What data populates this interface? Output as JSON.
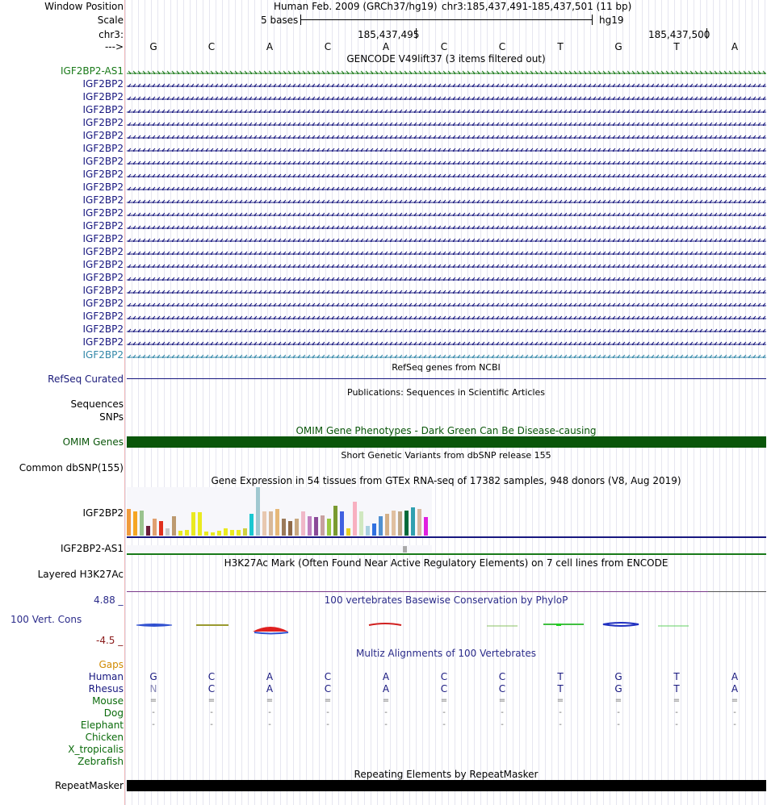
{
  "ruler": {
    "window_position_label": "Window Position",
    "scale_label": "Scale",
    "chrom_label": "chr3:",
    "strand_label": "--->",
    "assembly_text": "Human Feb. 2009 (GRCh37/hg19)",
    "position_text": "chr3:185,437,491-185,437,501 (11 bp)",
    "scale_text": "5 bases",
    "db_text": "hg19",
    "coord1": "185,437,495",
    "coord2": "185,437,500"
  },
  "bases": [
    "G",
    "C",
    "A",
    "C",
    "A",
    "C",
    "C",
    "T",
    "G",
    "T",
    "A"
  ],
  "gencode": {
    "title": "GENCODE V49lift37 (3 items filtered out)",
    "genes": [
      "IGF2BP2-AS1",
      "IGF2BP2",
      "IGF2BP2",
      "IGF2BP2",
      "IGF2BP2",
      "IGF2BP2",
      "IGF2BP2",
      "IGF2BP2",
      "IGF2BP2",
      "IGF2BP2",
      "IGF2BP2",
      "IGF2BP2",
      "IGF2BP2",
      "IGF2BP2",
      "IGF2BP2",
      "IGF2BP2",
      "IGF2BP2",
      "IGF2BP2",
      "IGF2BP2",
      "IGF2BP2",
      "IGF2BP2",
      "IGF2BP2",
      "IGF2BP2"
    ],
    "colors": {
      "as1": "#197a19",
      "main": "#17177f",
      "last": "#3287a8"
    }
  },
  "refseq": {
    "title": "RefSeq genes from NCBI",
    "label": "RefSeq Curated"
  },
  "publications": {
    "title": "Publications: Sequences in Scientific Articles",
    "label1": "Sequences",
    "label2": "SNPs"
  },
  "omim": {
    "title": "OMIM Gene Phenotypes - Dark Green Can Be Disease-causing",
    "label": "OMIM Genes",
    "color": "#0a560a"
  },
  "dbsnp": {
    "title": "Short Genetic Variants from dbSNP release 155",
    "label": "Common dbSNP(155)"
  },
  "gtex": {
    "title": "Gene Expression in 54 tissues from GTEx RNA-seq of 17382 samples, 948 donors (V8, Aug 2019)",
    "label1": "IGF2BP2",
    "label2": "IGF2BP2-AS1",
    "bar_values": [
      0.55,
      0.5,
      0.52,
      0.2,
      0.35,
      0.3,
      0.15,
      0.4,
      0.1,
      0.12,
      0.48,
      0.48,
      0.08,
      0.06,
      0.1,
      0.15,
      0.12,
      0.12,
      0.15,
      0.45,
      1.0,
      0.5,
      0.5,
      0.55,
      0.35,
      0.3,
      0.35,
      0.5,
      0.4,
      0.38,
      0.42,
      0.35,
      0.62,
      0.5,
      0.15,
      0.7,
      0.5,
      0.2,
      0.25,
      0.4,
      0.45,
      0.52,
      0.5,
      0.52,
      0.58,
      0.55,
      0.38
    ],
    "bar_colors": [
      "#f09a3c",
      "#f5a623",
      "#9ac38e",
      "#6b1f3a",
      "#e0a070",
      "#e0301e",
      "#c8c8c8",
      "#bd9a70",
      "#eaea20",
      "#eaea20",
      "#eaea20",
      "#eaea20",
      "#eaea20",
      "#eaea20",
      "#eaea20",
      "#eaea20",
      "#eaea20",
      "#eaea20",
      "#d0d040",
      "#1ac8d0",
      "#a0c8d0",
      "#e8c8b0",
      "#d8b898",
      "#e6b878",
      "#9b7a5a",
      "#8f6a48",
      "#c8a880",
      "#f0b8c8",
      "#c080c0",
      "#8a4a98",
      "#c8a0a0",
      "#9ac840",
      "#7a9a30",
      "#4060e0",
      "#e6d020",
      "#f8b0c0",
      "#d0e8c0",
      "#a8d0e0",
      "#3070e0",
      "#5090d0",
      "#d4b088",
      "#e0c0a0",
      "#c0a888",
      "#006a3a",
      "#30a0b0",
      "#d8b8a0",
      "#e020e0"
    ],
    "as1_value": 0.1
  },
  "h3k27ac": {
    "title": "H3K27Ac Mark (Often Found Near Active Regulatory Elements) on 7 cell lines from ENCODE",
    "label": "Layered H3K27Ac"
  },
  "phylop": {
    "title": "100 vertebrates Basewise Conservation by PhyloP",
    "label": "100 Vert. Cons",
    "max": "4.88 _",
    "min": "-4.5 _"
  },
  "multiz": {
    "title": "Multiz Alignments of 100 Vertebrates",
    "gaps_label": "Gaps",
    "species": [
      {
        "name": "Human",
        "seq": [
          "G",
          "C",
          "A",
          "C",
          "A",
          "C",
          "C",
          "T",
          "G",
          "T",
          "A"
        ]
      },
      {
        "name": "Rhesus",
        "seq": [
          "N",
          "C",
          "A",
          "C",
          "A",
          "C",
          "C",
          "T",
          "G",
          "T",
          "A"
        ]
      },
      {
        "name": "Mouse",
        "seq": [
          "=",
          "=",
          "=",
          "=",
          "=",
          "=",
          "=",
          "=",
          "=",
          "=",
          "="
        ]
      },
      {
        "name": "Dog",
        "seq": [
          "-",
          "-",
          "-",
          "-",
          "-",
          "-",
          "-",
          "-",
          "-",
          "-",
          "-"
        ]
      },
      {
        "name": "Elephant",
        "seq": [
          "-",
          "-",
          "-",
          "-",
          "-",
          "-",
          "-",
          "-",
          "-",
          "-",
          "-"
        ]
      },
      {
        "name": "Chicken",
        "seq": []
      },
      {
        "name": "X_tropicalis",
        "seq": []
      },
      {
        "name": "Zebrafish",
        "seq": []
      }
    ]
  },
  "repeatmasker": {
    "title": "Repeating Elements by RepeatMasker",
    "label": "RepeatMasker"
  }
}
